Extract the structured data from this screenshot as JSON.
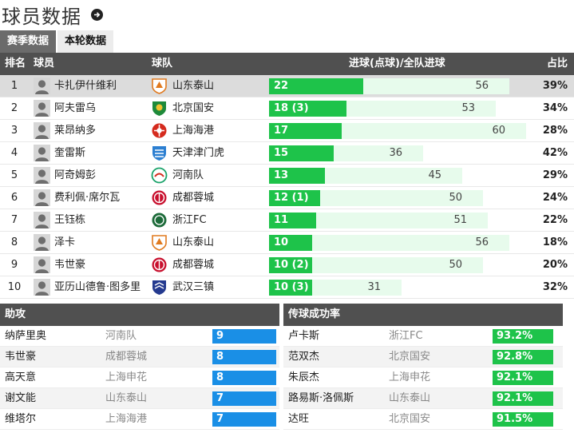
{
  "page_title": "球员数据",
  "tabs": [
    {
      "label": "赛季数据",
      "active": true
    },
    {
      "label": "本轮数据",
      "active": false
    }
  ],
  "scorers": {
    "headers": {
      "rank": "排名",
      "player": "球员",
      "team": "球队",
      "goals": "进球(点球)/全队进球",
      "share": "占比"
    },
    "max_total": 60,
    "rows": [
      {
        "rank": "1",
        "name": "卡扎伊什维利",
        "team": "山东泰山",
        "team_icon": "shandong-taishan-crest",
        "goals_label": "22",
        "goals": 22,
        "team_goals": 56,
        "team_goals_label": "56",
        "share": "39%"
      },
      {
        "rank": "2",
        "name": "阿夫雷乌",
        "team": "北京国安",
        "team_icon": "beijing-guoan-crest",
        "goals_label": "18 (3)",
        "goals": 18,
        "team_goals": 53,
        "team_goals_label": "53",
        "share": "34%"
      },
      {
        "rank": "3",
        "name": "莱昂纳多",
        "team": "上海海港",
        "team_icon": "shanghai-port-crest",
        "goals_label": "17",
        "goals": 17,
        "team_goals": 60,
        "team_goals_label": "60",
        "share": "28%"
      },
      {
        "rank": "4",
        "name": "奎雷斯",
        "team": "天津津门虎",
        "team_icon": "tianjin-tiger-crest",
        "goals_label": "15",
        "goals": 15,
        "team_goals": 36,
        "team_goals_label": "36",
        "share": "42%"
      },
      {
        "rank": "5",
        "name": "阿奇姆彭",
        "team": "河南队",
        "team_icon": "henan-crest",
        "goals_label": "13",
        "goals": 13,
        "team_goals": 45,
        "team_goals_label": "45",
        "share": "29%"
      },
      {
        "rank": "6",
        "name": "费利佩·席尔瓦",
        "team": "成都蓉城",
        "team_icon": "chengdu-rongcheng-crest",
        "goals_label": "12 (1)",
        "goals": 12,
        "team_goals": 50,
        "team_goals_label": "50",
        "share": "24%"
      },
      {
        "rank": "7",
        "name": "王钰栋",
        "team": "浙江FC",
        "team_icon": "zhejiang-fc-crest",
        "goals_label": "11",
        "goals": 11,
        "team_goals": 51,
        "team_goals_label": "51",
        "share": "22%"
      },
      {
        "rank": "8",
        "name": "泽卡",
        "team": "山东泰山",
        "team_icon": "shandong-taishan-crest",
        "goals_label": "10",
        "goals": 10,
        "team_goals": 56,
        "team_goals_label": "56",
        "share": "18%"
      },
      {
        "rank": "9",
        "name": "韦世豪",
        "team": "成都蓉城",
        "team_icon": "chengdu-rongcheng-crest",
        "goals_label": "10 (2)",
        "goals": 10,
        "team_goals": 50,
        "team_goals_label": "50",
        "share": "20%"
      },
      {
        "rank": "10",
        "name": "亚历山德鲁·图多里",
        "team": "武汉三镇",
        "team_icon": "wuhan-three-towns-crest",
        "goals_label": "10 (3)",
        "goals": 10,
        "team_goals": 31,
        "team_goals_label": "31",
        "share": "32%"
      }
    ]
  },
  "assists": {
    "title": "助攻",
    "rows": [
      {
        "name": "纳萨里奥",
        "team": "河南队",
        "value": "9"
      },
      {
        "name": "韦世豪",
        "team": "成都蓉城",
        "value": "8"
      },
      {
        "name": "高天意",
        "team": "上海申花",
        "value": "8"
      },
      {
        "name": "谢文能",
        "team": "山东泰山",
        "value": "7"
      },
      {
        "name": "维塔尔",
        "team": "上海海港",
        "value": "7"
      }
    ]
  },
  "passing": {
    "title": "传球成功率",
    "rows": [
      {
        "name": "卢卡斯",
        "team": "浙江FC",
        "value": "93.2%"
      },
      {
        "name": "范双杰",
        "team": "北京国安",
        "value": "92.8%"
      },
      {
        "name": "朱辰杰",
        "team": "上海申花",
        "value": "92.1%"
      },
      {
        "name": "路易斯·洛佩斯",
        "team": "山东泰山",
        "value": "92.1%"
      },
      {
        "name": "达旺",
        "team": "北京国安",
        "value": "91.5%"
      }
    ]
  },
  "colors": {
    "header_bg": "#505050",
    "goal_bar": "#1ec34a",
    "team_bar": "#e7fbec",
    "assist_bar": "#1a8fe6",
    "pass_bar": "#1ec34a"
  }
}
